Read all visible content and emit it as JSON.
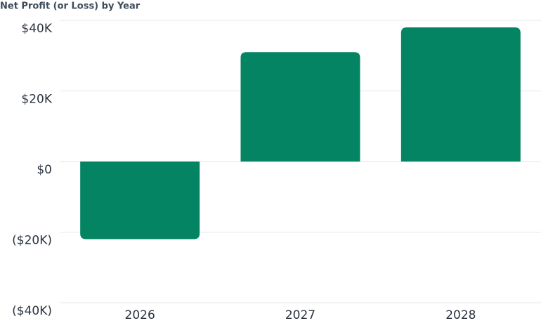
{
  "chart_data": {
    "type": "bar",
    "title": "Net Profit (or Loss) by Year",
    "categories": [
      "2026",
      "2027",
      "2028"
    ],
    "values": [
      -22000,
      31000,
      38000
    ],
    "color": "#048462",
    "ylim": [
      -40000,
      40000
    ],
    "yticks": [
      {
        "value": -40000,
        "label": "($40K)"
      },
      {
        "value": -20000,
        "label": "($20K)"
      },
      {
        "value": 0,
        "label": "$0"
      },
      {
        "value": 20000,
        "label": "$20K"
      },
      {
        "value": 40000,
        "label": "$40K"
      }
    ],
    "grid": true
  }
}
